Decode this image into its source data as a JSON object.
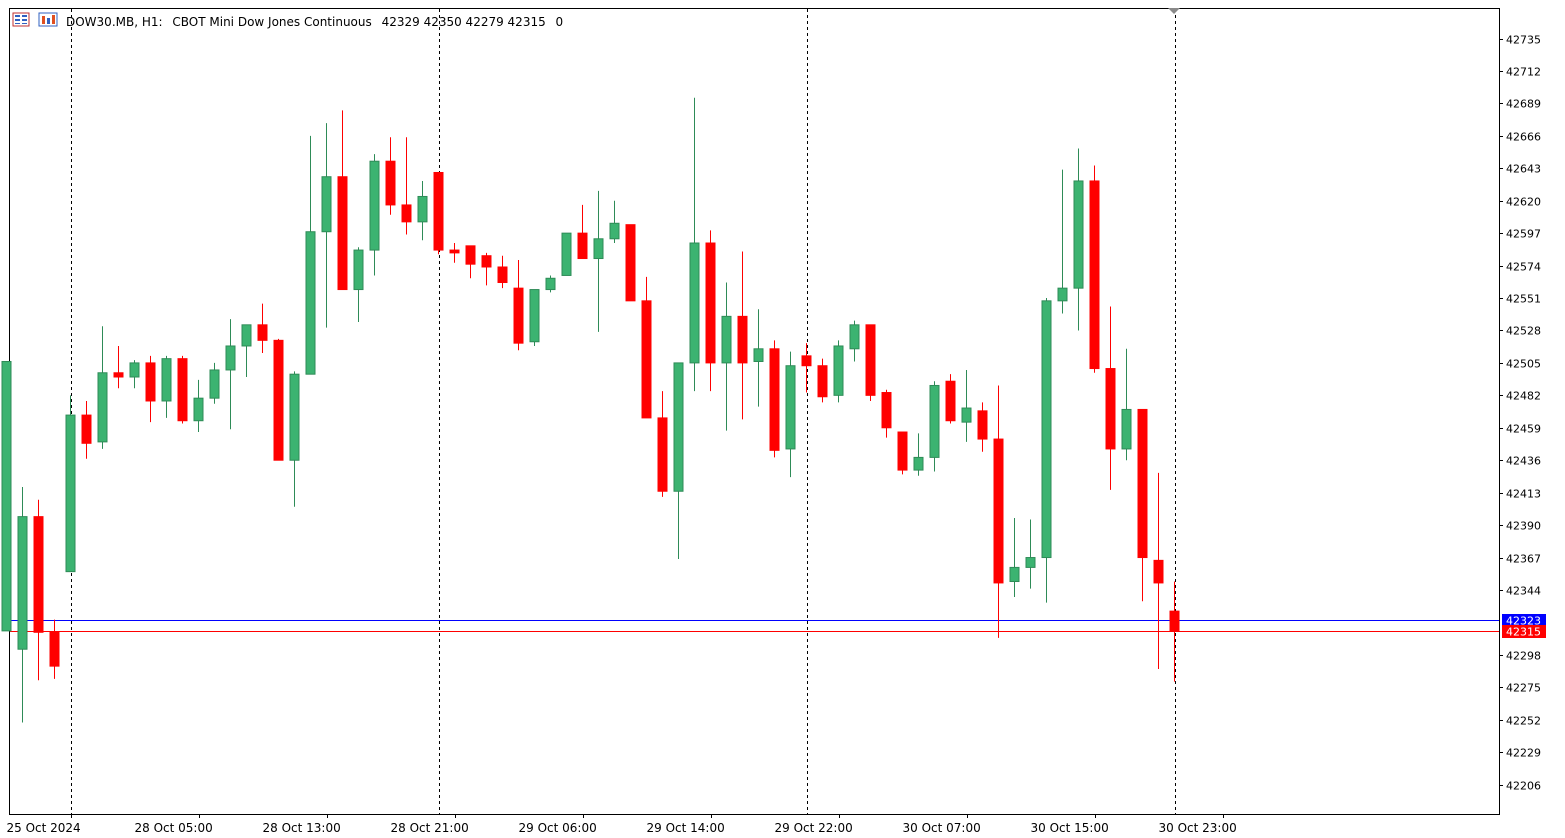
{
  "header": {
    "symbol": "DOW30.MB, H1:",
    "description": "CBOT Mini Dow Jones Continuous",
    "ohlc": "42329 42350 42279 42315",
    "volume": "0",
    "icons": [
      "chart-window-icon",
      "indicator-icon"
    ]
  },
  "colors": {
    "bull": "#3cb371",
    "bear": "#ff0000",
    "bid_line": "#0000ff",
    "ask_line": "#ff0000",
    "grid": "#000000",
    "frame": "#000000"
  },
  "chart_data": {
    "type": "candlestick",
    "title": "",
    "xlabel": "",
    "ylabel": "",
    "ylim": [
      42183,
      42758
    ],
    "grid": "vertical dashed separators only",
    "y_ticks": [
      42735,
      42712,
      42689,
      42666,
      42643,
      42620,
      42597,
      42574,
      42551,
      42528,
      42505,
      42482,
      42459,
      42436,
      42413,
      42390,
      42367,
      42344,
      42298,
      42275,
      42252,
      42229,
      42206
    ],
    "x_tick_labels": [
      {
        "index": 4,
        "label": "25 Oct 2024"
      },
      {
        "index": 12,
        "label": "28 Oct 05:00"
      },
      {
        "index": 20,
        "label": "28 Oct 13:00"
      },
      {
        "index": 28,
        "label": "28 Oct 21:00"
      },
      {
        "index": 36,
        "label": "29 Oct 06:00"
      },
      {
        "index": 44,
        "label": "29 Oct 14:00"
      },
      {
        "index": 52,
        "label": "29 Oct 22:00"
      },
      {
        "index": 60,
        "label": "30 Oct 07:00"
      },
      {
        "index": 68,
        "label": "30 Oct 15:00"
      },
      {
        "index": 76,
        "label": "30 Oct 23:00"
      }
    ],
    "separators": [
      4,
      27,
      50,
      73
    ],
    "price_lines": [
      {
        "name": "bid",
        "value": "42323"
      },
      {
        "name": "ask",
        "value": "42315"
      }
    ],
    "candles": [
      {
        "o": 42315,
        "h": 42506,
        "l": 42315,
        "c": 42506
      },
      {
        "o": 42302,
        "h": 42417,
        "l": 42250,
        "c": 42396
      },
      {
        "o": 42396,
        "h": 42408,
        "l": 42280,
        "c": 42314
      },
      {
        "o": 42314,
        "h": 42323,
        "l": 42281,
        "c": 42290
      },
      {
        "o": 42357,
        "h": 42482,
        "l": 42357,
        "c": 42468
      },
      {
        "o": 42468,
        "h": 42478,
        "l": 42437,
        "c": 42448
      },
      {
        "o": 42449,
        "h": 42531,
        "l": 42444,
        "c": 42498
      },
      {
        "o": 42498,
        "h": 42517,
        "l": 42487,
        "c": 42495
      },
      {
        "o": 42495,
        "h": 42507,
        "l": 42487,
        "c": 42505
      },
      {
        "o": 42505,
        "h": 42510,
        "l": 42463,
        "c": 42478
      },
      {
        "o": 42478,
        "h": 42510,
        "l": 42466,
        "c": 42508
      },
      {
        "o": 42508,
        "h": 42510,
        "l": 42462,
        "c": 42464
      },
      {
        "o": 42464,
        "h": 42493,
        "l": 42456,
        "c": 42480
      },
      {
        "o": 42480,
        "h": 42505,
        "l": 42476,
        "c": 42500
      },
      {
        "o": 42500,
        "h": 42536,
        "l": 42458,
        "c": 42517
      },
      {
        "o": 42517,
        "h": 42531,
        "l": 42495,
        "c": 42532
      },
      {
        "o": 42532,
        "h": 42547,
        "l": 42512,
        "c": 42521
      },
      {
        "o": 42521,
        "h": 42522,
        "l": 42436,
        "c": 42436
      },
      {
        "o": 42436,
        "h": 42499,
        "l": 42403,
        "c": 42497
      },
      {
        "o": 42497,
        "h": 42666,
        "l": 42497,
        "c": 42598
      },
      {
        "o": 42598,
        "h": 42675,
        "l": 42530,
        "c": 42637
      },
      {
        "o": 42637,
        "h": 42684,
        "l": 42557,
        "c": 42557
      },
      {
        "o": 42557,
        "h": 42587,
        "l": 42534,
        "c": 42585
      },
      {
        "o": 42585,
        "h": 42653,
        "l": 42567,
        "c": 42648
      },
      {
        "o": 42648,
        "h": 42665,
        "l": 42610,
        "c": 42617
      },
      {
        "o": 42617,
        "h": 42665,
        "l": 42596,
        "c": 42605
      },
      {
        "o": 42605,
        "h": 42634,
        "l": 42592,
        "c": 42623
      },
      {
        "o": 42640,
        "h": 42640,
        "l": 42582,
        "c": 42585
      },
      {
        "o": 42585,
        "h": 42590,
        "l": 42576,
        "c": 42583
      },
      {
        "o": 42588,
        "h": 42588,
        "l": 42565,
        "c": 42575
      },
      {
        "o": 42581,
        "h": 42583,
        "l": 42560,
        "c": 42573
      },
      {
        "o": 42573,
        "h": 42581,
        "l": 42558,
        "c": 42562
      },
      {
        "o": 42558,
        "h": 42578,
        "l": 42514,
        "c": 42519
      },
      {
        "o": 42520,
        "h": 42557,
        "l": 42517,
        "c": 42557
      },
      {
        "o": 42557,
        "h": 42567,
        "l": 42555,
        "c": 42565
      },
      {
        "o": 42567,
        "h": 42597,
        "l": 42567,
        "c": 42597
      },
      {
        "o": 42597,
        "h": 42617,
        "l": 42580,
        "c": 42579
      },
      {
        "o": 42579,
        "h": 42627,
        "l": 42527,
        "c": 42593
      },
      {
        "o": 42593,
        "h": 42620,
        "l": 42590,
        "c": 42604
      },
      {
        "o": 42603,
        "h": 42603,
        "l": 42549,
        "c": 42549
      },
      {
        "o": 42549,
        "h": 42566,
        "l": 42466,
        "c": 42466
      },
      {
        "o": 42466,
        "h": 42485,
        "l": 42410,
        "c": 42414
      },
      {
        "o": 42414,
        "h": 42505,
        "l": 42366,
        "c": 42505
      },
      {
        "o": 42505,
        "h": 42693,
        "l": 42485,
        "c": 42590
      },
      {
        "o": 42590,
        "h": 42599,
        "l": 42485,
        "c": 42505
      },
      {
        "o": 42505,
        "h": 42562,
        "l": 42457,
        "c": 42538
      },
      {
        "o": 42538,
        "h": 42584,
        "l": 42465,
        "c": 42505
      },
      {
        "o": 42506,
        "h": 42543,
        "l": 42474,
        "c": 42515
      },
      {
        "o": 42515,
        "h": 42521,
        "l": 42438,
        "c": 42443
      },
      {
        "o": 42444,
        "h": 42513,
        "l": 42424,
        "c": 42503
      },
      {
        "o": 42510,
        "h": 42519,
        "l": 42484,
        "c": 42503
      },
      {
        "o": 42503,
        "h": 42508,
        "l": 42477,
        "c": 42481
      },
      {
        "o": 42482,
        "h": 42521,
        "l": 42477,
        "c": 42517
      },
      {
        "o": 42515,
        "h": 42535,
        "l": 42506,
        "c": 42532
      },
      {
        "o": 42532,
        "h": 42532,
        "l": 42478,
        "c": 42482
      },
      {
        "o": 42484,
        "h": 42486,
        "l": 42452,
        "c": 42459
      },
      {
        "o": 42456,
        "h": 42456,
        "l": 42426,
        "c": 42429
      },
      {
        "o": 42429,
        "h": 42455,
        "l": 42425,
        "c": 42438
      },
      {
        "o": 42438,
        "h": 42492,
        "l": 42428,
        "c": 42489
      },
      {
        "o": 42492,
        "h": 42497,
        "l": 42462,
        "c": 42464
      },
      {
        "o": 42463,
        "h": 42500,
        "l": 42449,
        "c": 42473
      },
      {
        "o": 42471,
        "h": 42477,
        "l": 42442,
        "c": 42451
      },
      {
        "o": 42451,
        "h": 42489,
        "l": 42310,
        "c": 42349
      },
      {
        "o": 42350,
        "h": 42395,
        "l": 42339,
        "c": 42360
      },
      {
        "o": 42360,
        "h": 42394,
        "l": 42345,
        "c": 42367
      },
      {
        "o": 42367,
        "h": 42551,
        "l": 42335,
        "c": 42549
      },
      {
        "o": 42549,
        "h": 42642,
        "l": 42540,
        "c": 42558
      },
      {
        "o": 42558,
        "h": 42657,
        "l": 42528,
        "c": 42634
      },
      {
        "o": 42634,
        "h": 42645,
        "l": 42498,
        "c": 42501
      },
      {
        "o": 42501,
        "h": 42545,
        "l": 42415,
        "c": 42444
      },
      {
        "o": 42444,
        "h": 42515,
        "l": 42436,
        "c": 42472
      },
      {
        "o": 42472,
        "h": 42472,
        "l": 42336,
        "c": 42367
      },
      {
        "o": 42365,
        "h": 42427,
        "l": 42288,
        "c": 42349
      },
      {
        "o": 42329,
        "h": 42350,
        "l": 42279,
        "c": 42315
      }
    ]
  }
}
